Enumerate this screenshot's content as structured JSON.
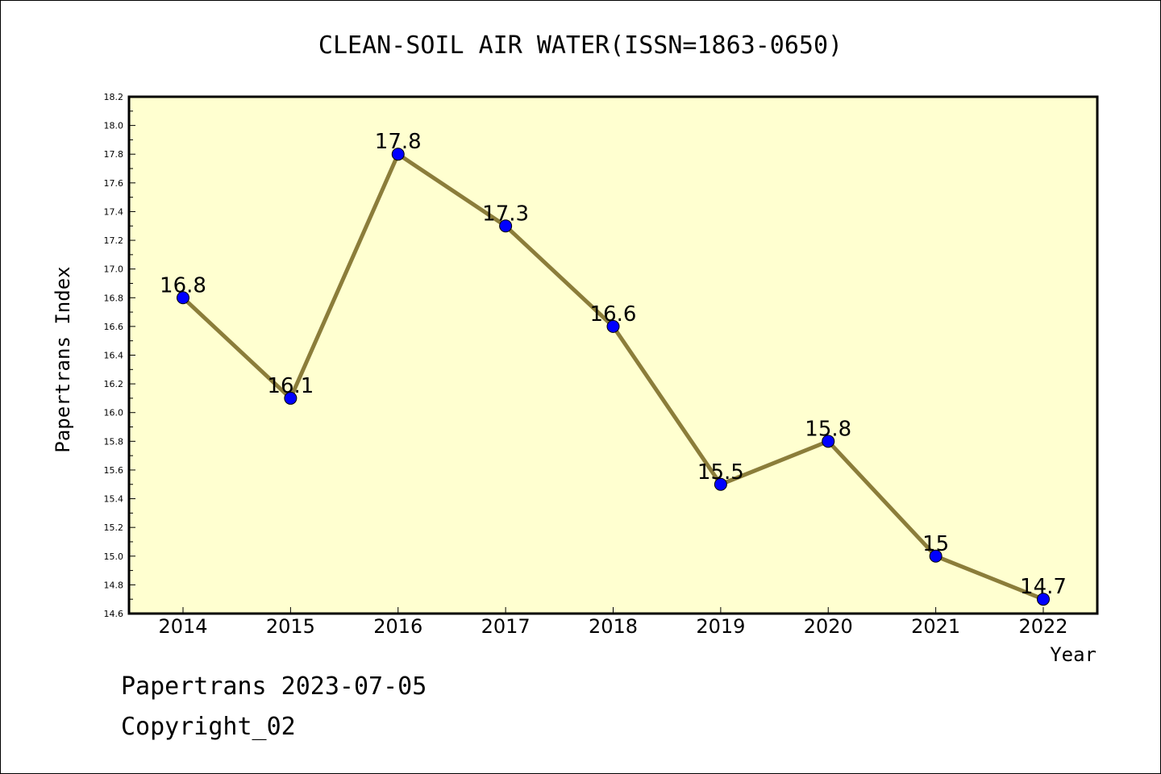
{
  "chart_data": {
    "type": "line",
    "title": "CLEAN-SOIL AIR WATER(ISSN=1863-0650)",
    "xlabel": "Year",
    "ylabel": "Papertrans Index",
    "categories": [
      "2014",
      "2015",
      "2016",
      "2017",
      "2018",
      "2019",
      "2020",
      "2021",
      "2022"
    ],
    "values": [
      16.8,
      16.1,
      17.8,
      17.3,
      16.6,
      15.5,
      15.8,
      15.0,
      14.7
    ],
    "data_labels": [
      "16.8",
      "16.1",
      "17.8",
      "17.3",
      "16.6",
      "15.5",
      "15.8",
      "15",
      "14.7"
    ],
    "ylim": [
      14.6,
      18.2
    ],
    "yticks": [
      "14.6",
      "14.8",
      "15.0",
      "15.2",
      "15.4",
      "15.6",
      "15.8",
      "16.0",
      "16.2",
      "16.4",
      "16.6",
      "16.8",
      "17.0",
      "17.2",
      "17.4",
      "17.6",
      "17.8",
      "18.0",
      "18.2"
    ],
    "grid": false,
    "colors": {
      "line": "#8b7d3a",
      "marker": "#0000ff",
      "plot_background": "#ffffd0"
    }
  },
  "footer": {
    "line1": "Papertrans 2023-07-05",
    "line2": "Copyright_02"
  }
}
